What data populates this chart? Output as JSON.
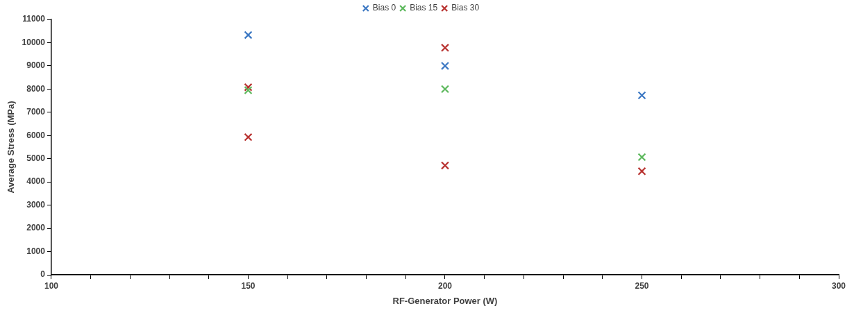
{
  "chart_data": {
    "type": "scatter",
    "xlabel": "RF-Generator Power (W)",
    "ylabel": "Average Stress (MPa)",
    "xlim": [
      100,
      300
    ],
    "xticks": [
      100,
      {
        "value": 110,
        "label": null
      },
      {
        "value": 120,
        "label": null
      },
      {
        "value": 130,
        "label": null
      },
      {
        "value": 140,
        "label": null
      },
      150,
      {
        "value": 160,
        "label": null
      },
      {
        "value": 170,
        "label": null
      },
      {
        "value": 180,
        "label": null
      },
      {
        "value": 190,
        "label": null
      },
      200,
      {
        "value": 210,
        "label": null
      },
      {
        "value": 220,
        "label": null
      },
      {
        "value": 230,
        "label": null
      },
      {
        "value": 240,
        "label": null
      },
      250,
      {
        "value": 260,
        "label": null
      },
      {
        "value": 270,
        "label": null
      },
      {
        "value": 280,
        "label": null
      },
      {
        "value": 290,
        "label": null
      },
      300
    ],
    "ylim": [
      0,
      11000
    ],
    "yticks": [
      0,
      1000,
      2000,
      3000,
      4000,
      5000,
      6000,
      7000,
      8000,
      9000,
      10000,
      11000
    ],
    "grid": false,
    "legend": "top",
    "marker": "cross",
    "series": [
      {
        "name": "Bias 0",
        "color": "#3c78c3",
        "x": [
          150,
          200,
          250
        ],
        "values": [
          10330,
          9000,
          7730
        ]
      },
      {
        "name": "Bias 15",
        "color": "#5cb85c",
        "x": [
          150,
          200,
          250
        ],
        "values": [
          7950,
          8000,
          5070
        ]
      },
      {
        "name": "Bias 30",
        "color": "#b8312f",
        "x": [
          150,
          150,
          200,
          200,
          250
        ],
        "values": [
          8080,
          5930,
          9780,
          4710,
          4460
        ]
      }
    ]
  }
}
